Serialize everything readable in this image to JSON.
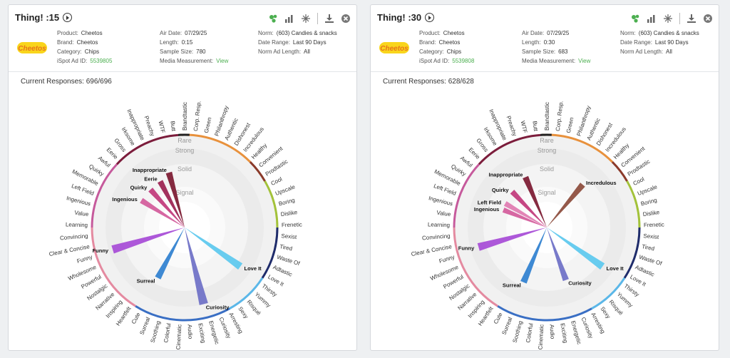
{
  "colors": {
    "accent": "#4caf50"
  },
  "labels": {
    "product": "Product:",
    "brand": "Brand:",
    "category": "Category:",
    "ispot": "iSpot Ad ID:",
    "air": "Air Date:",
    "length": "Length:",
    "sample": "Sample Size:",
    "media": "Media Measurement:",
    "norm": "Norm:",
    "range": "Date Range:",
    "normlen": "Norm Ad Length:"
  },
  "cards": [
    {
      "title": "Thing! :15",
      "product": "Cheetos",
      "brand": "Cheetos",
      "category": "Chips",
      "ispot_id": "5539805",
      "air_date": "07/29/25",
      "length": "0:15",
      "sample_size": "780",
      "media": "View",
      "norm": "(603) Candies & snacks",
      "date_range": "Last 90 Days",
      "norm_length": "All",
      "logo_text": "Cheetos",
      "responses": "Current Responses: 696/696"
    },
    {
      "title": "Thing! :30",
      "product": "Cheetos",
      "brand": "Cheetos",
      "category": "Chips",
      "ispot_id": "5539808",
      "air_date": "07/29/25",
      "length": "0:30",
      "sample_size": "683",
      "media": "View",
      "norm": "(603) Candies & snacks",
      "date_range": "Last 90 Days",
      "norm_length": "All",
      "logo_text": "Cheetos",
      "responses": "Current Responses: 628/628"
    }
  ],
  "chart_data": [
    {
      "type": "radial-spike",
      "zones": [
        "Rare",
        "Strong",
        "Solid",
        "Signal"
      ],
      "spokes": [
        "Brandtastic",
        "Corp. Resp.",
        "Green",
        "Philanthropy",
        "Authentic",
        "Dishonest",
        "Incredulous",
        "Healthy",
        "Convenient",
        "Prodtastic",
        "Cool",
        "Upscale",
        "Boring",
        "Dislike",
        "Frenetic",
        "Sexist",
        "Tired",
        "Waste Of",
        "Adtastic",
        "Love It",
        "Thirsty",
        "Yummy",
        "Risqué",
        "Sexy",
        "Arresting",
        "Curiosity",
        "Energetic",
        "Exciting",
        "Audio",
        "Cinematic",
        "Colorful",
        "Soothing",
        "Surreal",
        "Cute",
        "Heartfelt",
        "Inspiring",
        "Narrative",
        "Nostalgic",
        "Powerful",
        "Wholesome",
        "Funny",
        "Clear & Concise",
        "Convincing",
        "Learning",
        "Value",
        "Ingenious",
        "Left Field",
        "Memorable",
        "Quirky",
        "Awful",
        "Eerie",
        "Gross",
        "Irksome",
        "Inappropriate",
        "Preachy",
        "WTF",
        "Butt"
      ],
      "spikes": [
        {
          "label": "Funny",
          "angle": 253,
          "value": 0.82,
          "color": "#a64ad6"
        },
        {
          "label": "Curiosity",
          "angle": 166,
          "value": 0.88,
          "color": "#6c6fc6"
        },
        {
          "label": "Love It",
          "angle": 125,
          "value": 0.7,
          "color": "#5bc8ee"
        },
        {
          "label": "Surreal",
          "angle": 208,
          "value": 0.52,
          "color": "#2e7fcf"
        },
        {
          "label": "Ingenious",
          "angle": 302,
          "value": 0.42,
          "color": "#d25a9a"
        },
        {
          "label": "Quirky",
          "angle": 318,
          "value": 0.42,
          "color": "#c0377a"
        },
        {
          "label": "Eerie",
          "angle": 332,
          "value": 0.44,
          "color": "#9a1f4f"
        },
        {
          "label": "Inappropriate",
          "angle": 344,
          "value": 0.52,
          "color": "#7b1830"
        }
      ]
    },
    {
      "type": "radial-spike",
      "zones": [
        "Rare",
        "Strong",
        "Solid",
        "Signal"
      ],
      "spokes": [
        "Brandtastic",
        "Corp. Resp.",
        "Green",
        "Philanthropy",
        "Authentic",
        "Dishonest",
        "Incredulous",
        "Healthy",
        "Convenient",
        "Prodtastic",
        "Cool",
        "Upscale",
        "Boring",
        "Dislike",
        "Frenetic",
        "Sexist",
        "Tired",
        "Waste Of",
        "Adtastic",
        "Love It",
        "Thirsty",
        "Yummy",
        "Risqué",
        "Sexy",
        "Arresting",
        "Curiosity",
        "Energetic",
        "Exciting",
        "Audio",
        "Cinematic",
        "Colorful",
        "Soothing",
        "Surreal",
        "Cute",
        "Heartfelt",
        "Inspiring",
        "Narrative",
        "Nostalgic",
        "Powerful",
        "Wholesome",
        "Funny",
        "Clear & Concise",
        "Convincing",
        "Learning",
        "Value",
        "Ingenious",
        "Left Field",
        "Memorable",
        "Quirky",
        "Awful",
        "Eerie",
        "Gross",
        "Irksome",
        "Inappropriate",
        "Preachy",
        "WTF",
        "Butt"
      ],
      "spikes": [
        {
          "label": "Funny",
          "angle": 254,
          "value": 0.75,
          "color": "#a64ad6"
        },
        {
          "label": "Curiosity",
          "angle": 160,
          "value": 0.5,
          "color": "#6c6fc6"
        },
        {
          "label": "Love It",
          "angle": 125,
          "value": 0.7,
          "color": "#5bc8ee"
        },
        {
          "label": "Surreal",
          "angle": 203,
          "value": 0.56,
          "color": "#2e7fcf"
        },
        {
          "label": "Incredulous",
          "angle": 40,
          "value": 0.5,
          "color": "#8b4a3a"
        },
        {
          "label": "Ingenious",
          "angle": 292,
          "value": 0.35,
          "color": "#d25a9a"
        },
        {
          "label": "Left Field",
          "angle": 300,
          "value": 0.37,
          "color": "#e07ab0"
        },
        {
          "label": "Quirky",
          "angle": 316,
          "value": 0.4,
          "color": "#c0377a"
        },
        {
          "label": "Inappropriate",
          "angle": 337,
          "value": 0.48,
          "color": "#7b1830"
        }
      ]
    }
  ]
}
